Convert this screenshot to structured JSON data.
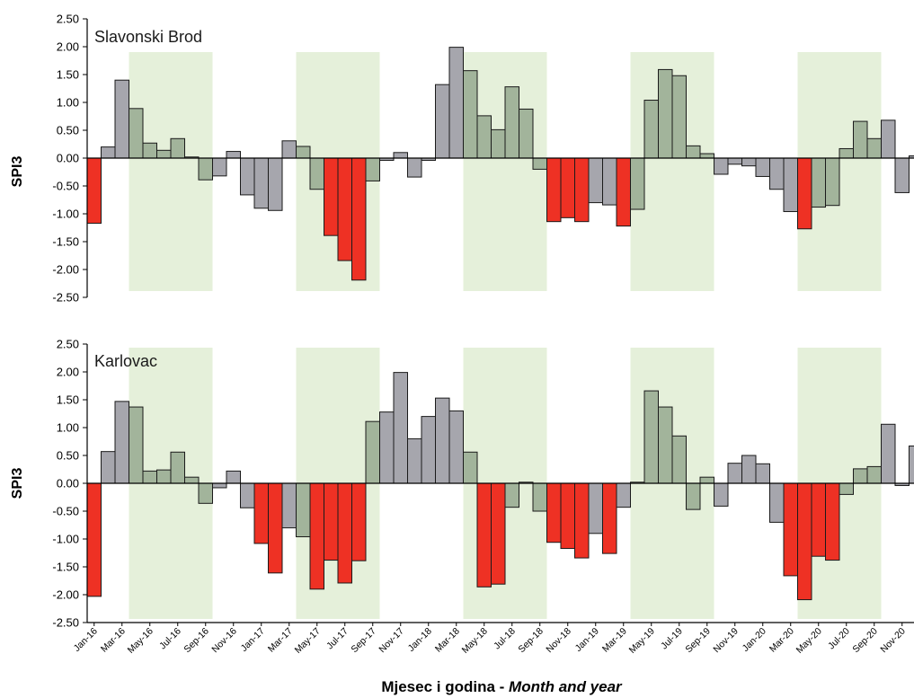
{
  "colors": {
    "drought_bar": "#ee3124",
    "growing_season_bar": "#a2b49b",
    "other_bar": "#a6a6ad",
    "season_shading": "#e5f0da",
    "bar_outline": "#1a1a1a"
  },
  "xlabel": {
    "main": "Mjesec i godina - ",
    "italic": "Month and year"
  },
  "chart_data": [
    {
      "type": "bar",
      "title": "Slavonski Brod",
      "ylabel": "SPI3",
      "ylim": [
        -2.5,
        2.5
      ],
      "yticks": [
        "2.50",
        "2.00",
        "1.50",
        "1.00",
        "0.50",
        "0.00",
        "-0.50",
        "-1.00",
        "-1.50",
        "-2.00",
        "-2.50"
      ],
      "x_tick_labels": [
        "Jan-16",
        "Mar-16",
        "May-16",
        "Jul-16",
        "Sep-16",
        "Nov-16",
        "Jan-17",
        "Mar-17",
        "May-17",
        "Jul-17",
        "Sep-17",
        "Nov-17",
        "Jan-18",
        "Mar-18",
        "May-18",
        "Jul-18",
        "Sep-18",
        "Nov-18",
        "Jan-19",
        "Mar-19",
        "May-19",
        "Jul-19",
        "Sep-19",
        "Nov-19",
        "Jan-20",
        "Mar-20",
        "May-20",
        "Jul-20",
        "Sep-20",
        "Nov-20"
      ],
      "shaded_months": [
        "Apr-16",
        "Sep-16",
        "Apr-17",
        "Sep-17",
        "Apr-18",
        "Sep-18",
        "Apr-19",
        "Sep-19",
        "Apr-20",
        "Sep-20"
      ],
      "values": [
        -1.17,
        0.2,
        1.4,
        0.89,
        0.27,
        0.14,
        0.35,
        0.02,
        -0.39,
        -0.32,
        0.12,
        -0.66,
        -0.9,
        -0.94,
        0.31,
        0.21,
        -0.56,
        -1.39,
        -1.84,
        -2.19,
        -0.41,
        -0.04,
        0.1,
        -0.34,
        -0.04,
        1.32,
        1.99,
        1.57,
        0.76,
        0.51,
        1.28,
        0.88,
        -0.2,
        -1.14,
        -1.07,
        -1.14,
        -0.8,
        -0.84,
        -1.22,
        -0.92,
        1.04,
        1.59,
        1.48,
        0.22,
        0.08,
        -0.29,
        -0.11,
        -0.14,
        -0.33,
        -0.56,
        -0.96,
        -1.27,
        -0.88,
        -0.85,
        0.17,
        0.66,
        0.35,
        0.68,
        -0.62,
        0.04
      ],
      "bar_class": [
        "red",
        "gray",
        "gray",
        "green",
        "green",
        "green",
        "green",
        "green",
        "green",
        "gray",
        "gray",
        "gray",
        "gray",
        "gray",
        "gray",
        "green",
        "green",
        "red",
        "red",
        "red",
        "green",
        "gray",
        "gray",
        "gray",
        "gray",
        "gray",
        "gray",
        "green",
        "green",
        "green",
        "green",
        "green",
        "green",
        "red",
        "red",
        "red",
        "gray",
        "gray",
        "red",
        "green",
        "green",
        "green",
        "green",
        "green",
        "green",
        "gray",
        "gray",
        "gray",
        "gray",
        "gray",
        "gray",
        "red",
        "green",
        "green",
        "green",
        "green",
        "green",
        "gray",
        "gray",
        "gray"
      ]
    },
    {
      "type": "bar",
      "title": "Karlovac",
      "ylabel": "SPI3",
      "ylim": [
        -2.5,
        2.5
      ],
      "yticks": [
        "2.50",
        "2.00",
        "1.50",
        "1.00",
        "0.50",
        "0.00",
        "-0.50",
        "-1.00",
        "-1.50",
        "-2.00",
        "-2.50"
      ],
      "x_tick_labels": [
        "Jan-16",
        "Mar-16",
        "May-16",
        "Jul-16",
        "Sep-16",
        "Nov-16",
        "Jan-17",
        "Mar-17",
        "May-17",
        "Jul-17",
        "Sep-17",
        "Nov-17",
        "Jan-18",
        "Mar-18",
        "May-18",
        "Jul-18",
        "Sep-18",
        "Nov-18",
        "Jan-19",
        "Mar-19",
        "May-19",
        "Jul-19",
        "Sep-19",
        "Nov-19",
        "Jan-20",
        "Mar-20",
        "May-20",
        "Jul-20",
        "Sep-20",
        "Nov-20"
      ],
      "shaded_months": [
        "Apr-16",
        "Sep-16",
        "Apr-17",
        "Sep-17",
        "Apr-18",
        "Sep-18",
        "Apr-19",
        "Sep-19",
        "Apr-20",
        "Sep-20"
      ],
      "values": [
        -2.03,
        0.57,
        1.47,
        1.37,
        0.22,
        0.24,
        0.56,
        0.11,
        -0.36,
        -0.08,
        0.22,
        -0.44,
        -1.08,
        -1.61,
        -0.8,
        -0.96,
        -1.9,
        -1.38,
        -1.79,
        -1.39,
        1.11,
        1.28,
        1.99,
        0.8,
        1.2,
        1.53,
        1.3,
        0.56,
        -1.86,
        -1.81,
        -0.43,
        0.02,
        -0.5,
        -1.06,
        -1.17,
        -1.34,
        -0.9,
        -1.26,
        -0.43,
        0.02,
        1.66,
        1.37,
        0.85,
        -0.47,
        0.11,
        -0.41,
        0.36,
        0.5,
        0.35,
        -0.7,
        -1.66,
        -2.09,
        -1.31,
        -1.38,
        -0.2,
        0.26,
        0.3,
        1.06,
        -0.04,
        0.67
      ],
      "bar_class": [
        "red",
        "gray",
        "gray",
        "green",
        "green",
        "green",
        "green",
        "green",
        "green",
        "gray",
        "gray",
        "gray",
        "red",
        "red",
        "gray",
        "green",
        "red",
        "red",
        "red",
        "red",
        "green",
        "gray",
        "gray",
        "gray",
        "gray",
        "gray",
        "gray",
        "green",
        "red",
        "red",
        "green",
        "green",
        "green",
        "red",
        "red",
        "red",
        "gray",
        "red",
        "gray",
        "green",
        "green",
        "green",
        "green",
        "green",
        "green",
        "gray",
        "gray",
        "gray",
        "gray",
        "gray",
        "red",
        "red",
        "red",
        "red",
        "green",
        "green",
        "green",
        "gray",
        "gray",
        "gray"
      ]
    }
  ]
}
